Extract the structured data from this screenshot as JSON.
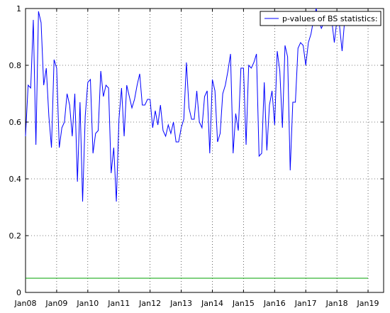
{
  "chart_data": {
    "type": "line",
    "title": "",
    "xlabel": "",
    "ylabel": "",
    "xlim": [
      "2008-01-01",
      "2019-07-01"
    ],
    "ylim": [
      0,
      1
    ],
    "x_tick_labels": [
      "Jan08",
      "Jan09",
      "Jan10",
      "Jan11",
      "Jan12",
      "Jan13",
      "Jan14",
      "Jan15",
      "Jan16",
      "Jan17",
      "Jan18",
      "Jan19"
    ],
    "y_tick_labels": [
      "0",
      "0.2",
      "0.4",
      "0.6",
      "0.8",
      "1"
    ],
    "grid": true,
    "legend_position": "top-right",
    "series": [
      {
        "name": "p-values of BS statistics:",
        "color": "#0000ff",
        "x": [
          "2008-01",
          "2008-02",
          "2008-03",
          "2008-04",
          "2008-05",
          "2008-06",
          "2008-07",
          "2008-08",
          "2008-09",
          "2008-10",
          "2008-11",
          "2008-12",
          "2009-01",
          "2009-02",
          "2009-03",
          "2009-04",
          "2009-05",
          "2009-06",
          "2009-07",
          "2009-08",
          "2009-09",
          "2009-10",
          "2009-11",
          "2009-12",
          "2010-01",
          "2010-02",
          "2010-03",
          "2010-04",
          "2010-05",
          "2010-06",
          "2010-07",
          "2010-08",
          "2010-09",
          "2010-10",
          "2010-11",
          "2010-12",
          "2011-01",
          "2011-02",
          "2011-03",
          "2011-04",
          "2011-05",
          "2011-06",
          "2011-07",
          "2011-08",
          "2011-09",
          "2011-10",
          "2011-11",
          "2011-12",
          "2012-01",
          "2012-02",
          "2012-03",
          "2012-04",
          "2012-05",
          "2012-06",
          "2012-07",
          "2012-08",
          "2012-09",
          "2012-10",
          "2012-11",
          "2012-12",
          "2013-01",
          "2013-02",
          "2013-03",
          "2013-04",
          "2013-05",
          "2013-06",
          "2013-07",
          "2013-08",
          "2013-09",
          "2013-10",
          "2013-11",
          "2013-12",
          "2014-01",
          "2014-02",
          "2014-03",
          "2014-04",
          "2014-05",
          "2014-06",
          "2014-07",
          "2014-08",
          "2014-09",
          "2014-10",
          "2014-11",
          "2014-12",
          "2015-01",
          "2015-02",
          "2015-03",
          "2015-04",
          "2015-05",
          "2015-06",
          "2015-07",
          "2015-08",
          "2015-09",
          "2015-10",
          "2015-11",
          "2015-12",
          "2016-01",
          "2016-02",
          "2016-03",
          "2016-04",
          "2016-05",
          "2016-06",
          "2016-07",
          "2016-08",
          "2016-09",
          "2016-10",
          "2016-11",
          "2016-12",
          "2017-01",
          "2017-02",
          "2017-03",
          "2017-04",
          "2017-05",
          "2017-06",
          "2017-07",
          "2017-08",
          "2017-09",
          "2017-10",
          "2017-11",
          "2017-12",
          "2018-01",
          "2018-02",
          "2018-03",
          "2018-04",
          "2018-05",
          "2018-06",
          "2018-07",
          "2018-08",
          "2018-09",
          "2018-10",
          "2018-11",
          "2018-12"
        ],
        "values": [
          0.55,
          0.73,
          0.72,
          0.96,
          0.52,
          0.99,
          0.95,
          0.73,
          0.79,
          0.62,
          0.51,
          0.82,
          0.79,
          0.51,
          0.58,
          0.6,
          0.7,
          0.66,
          0.55,
          0.7,
          0.39,
          0.67,
          0.32,
          0.62,
          0.74,
          0.75,
          0.49,
          0.56,
          0.57,
          0.78,
          0.69,
          0.73,
          0.72,
          0.42,
          0.51,
          0.32,
          0.61,
          0.72,
          0.55,
          0.73,
          0.69,
          0.65,
          0.68,
          0.73,
          0.77,
          0.66,
          0.66,
          0.68,
          0.68,
          0.58,
          0.64,
          0.59,
          0.66,
          0.57,
          0.55,
          0.59,
          0.56,
          0.6,
          0.53,
          0.53,
          0.58,
          0.61,
          0.81,
          0.65,
          0.61,
          0.61,
          0.71,
          0.6,
          0.58,
          0.69,
          0.71,
          0.49,
          0.75,
          0.71,
          0.53,
          0.56,
          0.7,
          0.73,
          0.78,
          0.84,
          0.49,
          0.63,
          0.57,
          0.79,
          0.79,
          0.52,
          0.8,
          0.79,
          0.81,
          0.84,
          0.48,
          0.49,
          0.74,
          0.5,
          0.66,
          0.71,
          0.59,
          0.85,
          0.78,
          0.58,
          0.87,
          0.83,
          0.43,
          0.67,
          0.67,
          0.86,
          0.88,
          0.87,
          0.8,
          0.88,
          0.91,
          0.96,
          1.0,
          0.96,
          0.93,
          0.95,
          0.95,
          0.96,
          0.96,
          0.88,
          0.96,
          0.94,
          0.85,
          0.96,
          0.96,
          0.96,
          0.97,
          0.96,
          0.96,
          0.96,
          0.96,
          0.96
        ]
      },
      {
        "name": "",
        "color": "#00a000",
        "x": [
          "2008-01",
          "2019-01"
        ],
        "values": [
          0.05,
          0.05
        ]
      }
    ]
  }
}
